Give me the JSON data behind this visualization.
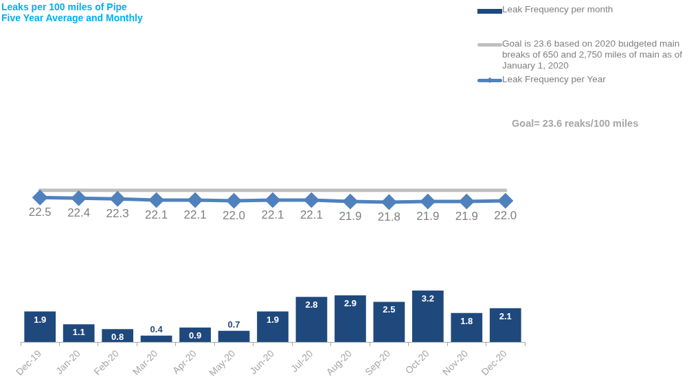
{
  "chart_data": [
    {
      "type": "line",
      "title": "Leaks per 100 miles of Pipe",
      "subtitle": "Five Year Average and Monthly",
      "categories": [
        null,
        null,
        null,
        null,
        null,
        null,
        null,
        null,
        null,
        null,
        null,
        null,
        null
      ],
      "series": [
        {
          "name": "Leak Frequency per Year",
          "color": "#4f81bd",
          "values": [
            22.5,
            22.4,
            22.3,
            22.1,
            22.1,
            22.0,
            22.1,
            22.1,
            21.9,
            21.8,
            21.9,
            21.9,
            22.0
          ],
          "value_labels": [
            "22.5",
            "22.4",
            "22.3",
            "22.1",
            "22.1",
            "22.0",
            "22.1",
            "22.1",
            "21.9",
            "21.8",
            "21.9",
            "21.9",
            "22.0"
          ]
        }
      ],
      "ref_lines": [
        {
          "axis": "y",
          "value": 23.6,
          "label": "Goal is 23.6 based on 2020 budgeted main breaks of 650 and 2,750 miles of main as of January 1, 2020",
          "color": "#bfbfbf"
        }
      ],
      "marker": "diamond",
      "tick_labels": false,
      "grid": false,
      "legend": "right",
      "annotations": [
        "Goal= 23.6 reaks/100 miles"
      ]
    },
    {
      "type": "bar",
      "categories": [
        "Dec-19",
        "Jan-20",
        "Feb-20",
        "Mar-20",
        "Apr-20",
        "May-20",
        "Jun-20",
        "Jul-20",
        "Aug-20",
        "Sep-20",
        "Oct-20",
        "Nov-20",
        "Dec-20"
      ],
      "series": [
        {
          "name": "Leak Frequency per month",
          "color": "#1f497d",
          "values": [
            1.9,
            1.1,
            0.8,
            0.4,
            0.9,
            0.7,
            1.9,
            2.8,
            2.9,
            2.5,
            3.2,
            1.8,
            2.1
          ]
        }
      ],
      "data_labels": true,
      "tick_labels": "x",
      "grid": false,
      "legend": "right"
    }
  ]
}
